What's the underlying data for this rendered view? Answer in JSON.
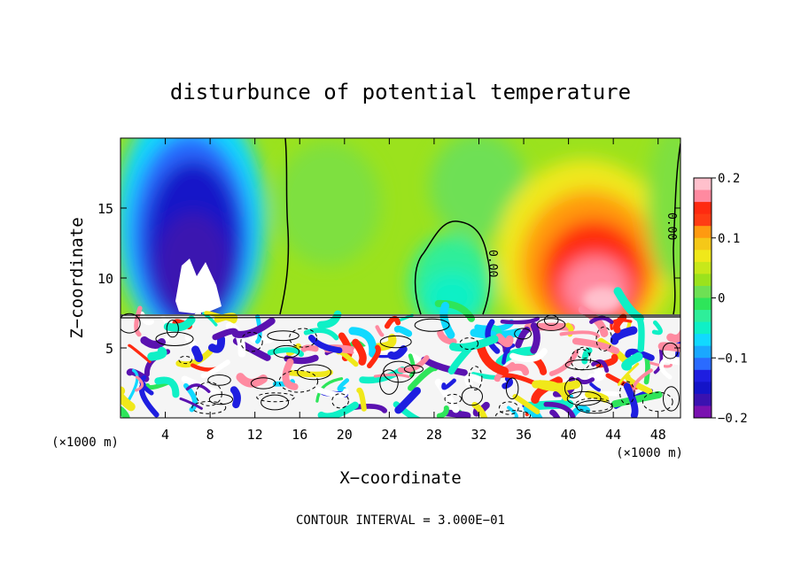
{
  "chart_data": {
    "type": "heatmap",
    "title": "disturbunce of potential temperature",
    "xlabel": "X−coordinate",
    "ylabel": "Z−coordinate",
    "x_unit_left": "(×1000 m)",
    "x_unit_right": "(×1000 m)",
    "xlim": [
      0,
      50
    ],
    "ylim": [
      0,
      20
    ],
    "x_ticks": [
      4,
      8,
      12,
      16,
      20,
      24,
      28,
      32,
      36,
      40,
      44,
      48
    ],
    "y_ticks": [
      5,
      10,
      15
    ],
    "colorbar": {
      "range": [
        -0.2,
        0.2
      ],
      "tick_labels": [
        "0.2",
        "0.1",
        "0",
        "−0.1",
        "−0.2"
      ],
      "tick_values": [
        0.2,
        0.1,
        0,
        -0.1,
        -0.2
      ]
    },
    "contour_interval_text": "CONTOUR INTERVAL = 3.000E−01",
    "contour_labels": [
      "0.00",
      "0.00"
    ],
    "fields": {
      "background": 0.02,
      "cold_plume": {
        "x": 6.5,
        "z": 15,
        "amplitude": -0.2,
        "center_x": 6.5,
        "white_region_value": -0.2
      },
      "warm_plume": {
        "x": 41.5,
        "z": 11.5,
        "amplitude": 0.2
      },
      "cool_dome": {
        "x": 30,
        "z": 10,
        "amplitude": -0.08
      },
      "turbulent_layer_top_z": 7.2
    }
  }
}
